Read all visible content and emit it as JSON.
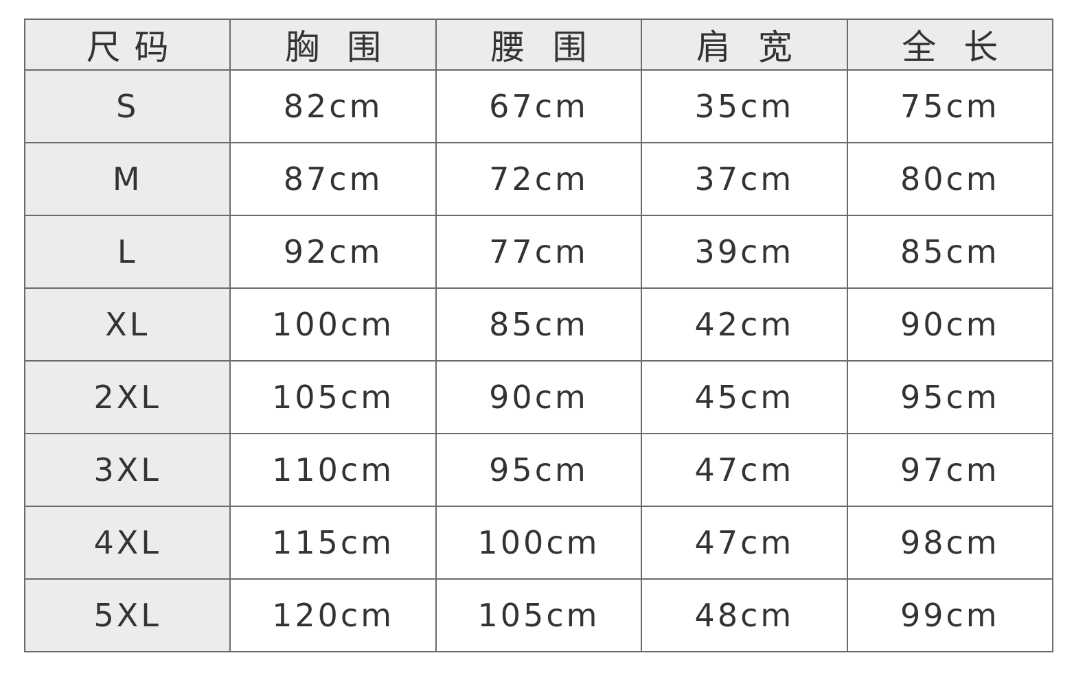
{
  "table": {
    "headers": [
      "尺码",
      "胸围",
      "腰围",
      "肩宽",
      "全长"
    ],
    "rows": [
      [
        "S",
        "82cm",
        "67cm",
        "35cm",
        "75cm"
      ],
      [
        "M",
        "87cm",
        "72cm",
        "37cm",
        "80cm"
      ],
      [
        "L",
        "92cm",
        "77cm",
        "39cm",
        "85cm"
      ],
      [
        "XL",
        "100cm",
        "85cm",
        "42cm",
        "90cm"
      ],
      [
        "2XL",
        "105cm",
        "90cm",
        "45cm",
        "95cm"
      ],
      [
        "3XL",
        "110cm",
        "95cm",
        "47cm",
        "97cm"
      ],
      [
        "4XL",
        "115cm",
        "100cm",
        "47cm",
        "98cm"
      ],
      [
        "5XL",
        "120cm",
        "105cm",
        "48cm",
        "99cm"
      ]
    ]
  },
  "colors": {
    "header_bg": "#ececec",
    "border": "#6a6a6a",
    "text": "#333333"
  }
}
